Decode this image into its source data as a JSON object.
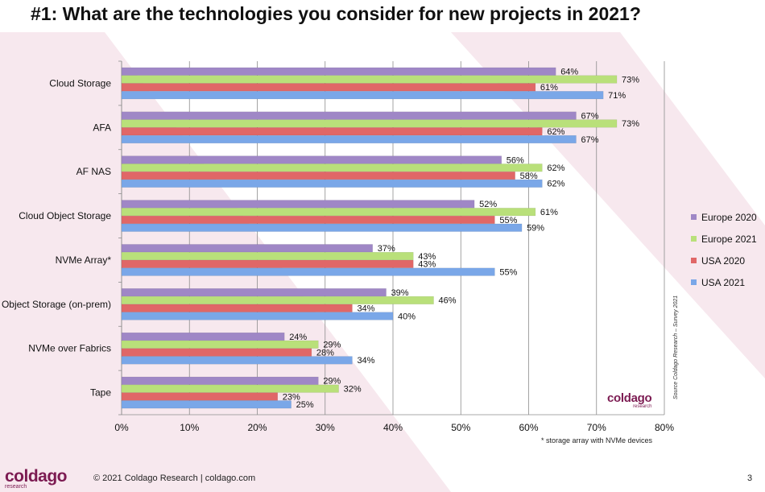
{
  "title": "#1: What are the technologies you consider for new projects in 2021?",
  "chart_data": {
    "type": "bar",
    "orientation": "horizontal",
    "categories": [
      "Cloud Storage",
      "AFA",
      "AF NAS",
      "Cloud Object Storage",
      "NVMe Array*",
      "Object Storage (on-prem)",
      "NVMe over Fabrics",
      "Tape"
    ],
    "series": [
      {
        "name": "Europe 2020",
        "color": "#9f87c6",
        "values": [
          64,
          67,
          56,
          52,
          37,
          39,
          24,
          29
        ]
      },
      {
        "name": "Europe 2021",
        "color": "#b9e07a",
        "values": [
          73,
          73,
          62,
          61,
          43,
          46,
          29,
          32
        ]
      },
      {
        "name": "USA 2020",
        "color": "#e06767",
        "values": [
          61,
          62,
          58,
          55,
          43,
          34,
          28,
          23
        ]
      },
      {
        "name": "USA 2021",
        "color": "#7aa7e8",
        "values": [
          71,
          67,
          62,
          59,
          55,
          40,
          34,
          25
        ]
      }
    ],
    "xlim": [
      0,
      80
    ],
    "x_ticks": [
      "0%",
      "10%",
      "20%",
      "30%",
      "40%",
      "50%",
      "60%",
      "70%",
      "80%"
    ],
    "value_suffix": "%",
    "grid": true,
    "legend_position": "right"
  },
  "footnote": "* storage array with NVMe devices",
  "source_note": "Source Coldago Research – Survey 2021",
  "logo": {
    "main": "coldago",
    "sub": "research"
  },
  "footer": {
    "copyright": "© 2021 Coldago Research | coldago.com",
    "page": "3"
  }
}
